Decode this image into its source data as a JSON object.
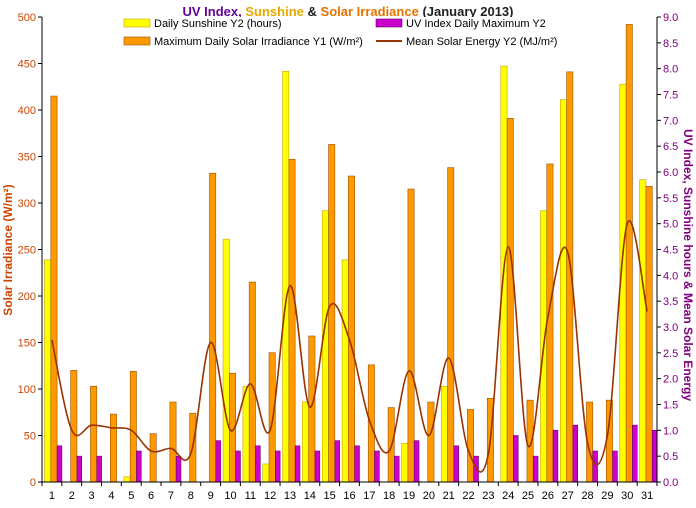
{
  "colors": {
    "sunshine": "#FFFF00",
    "sunshine_edge": "#C8A000",
    "irradiance": "#FF9900",
    "irradiance_edge": "#9C5200",
    "uv": "#CC00CC",
    "uv_edge": "#660066",
    "energy": "#993300",
    "left_axis": "#CC4400",
    "right_axis": "#800080",
    "title_uv": "#660099",
    "title_sun": "#E6A800",
    "title_solar": "#E67300",
    "title_dark": "#222222"
  },
  "chart_data": {
    "type": "bar",
    "title": {
      "part1": "UV Index,",
      "part2": "Sunshine",
      "part3": "&",
      "part4": "Solar Irradiance",
      "part5": "(January 2013)"
    },
    "xlabel": "",
    "ylabel_left": "Solar Irradiance (W/m²)",
    "ylabel_right": "UV Index, Sunshine hours & Mean Solar Energy",
    "ylim_left": [
      0,
      500
    ],
    "ylim_right": [
      0,
      9
    ],
    "yticks_left": [
      "0",
      "50",
      "100",
      "150",
      "200",
      "250",
      "300",
      "350",
      "400",
      "450",
      "500"
    ],
    "yticks_right": [
      "0.0",
      "0.5",
      "1.0",
      "1.5",
      "2.0",
      "2.5",
      "3.0",
      "3.5",
      "4.0",
      "4.5",
      "5.0",
      "5.5",
      "6.0",
      "6.5",
      "7.0",
      "7.5",
      "8.0",
      "8.5",
      "9.0"
    ],
    "categories": [
      "1",
      "2",
      "3",
      "4",
      "5",
      "6",
      "7",
      "8",
      "9",
      "10",
      "11",
      "12",
      "13",
      "14",
      "15",
      "16",
      "17",
      "18",
      "19",
      "20",
      "21",
      "22",
      "23",
      "24",
      "25",
      "26",
      "27",
      "28",
      "29",
      "30",
      "31"
    ],
    "legend": {
      "sunshine": "Daily Sunshine Y2 (hours)",
      "irradiance": "Maximum Daily Solar Irradiance Y1 (W/m²)",
      "uv": "UV Index Daily Maximum Y2",
      "energy": "Mean Solar Energy Y2 (MJ/m²)"
    },
    "series": [
      {
        "name": "Daily Sunshine Y2 (hours)",
        "axis": "right",
        "kind": "bar",
        "values": [
          4.3,
          0.0,
          0.0,
          0.0,
          0.1,
          0.0,
          0.0,
          0.0,
          0.0,
          4.7,
          1.85,
          0.35,
          7.95,
          1.55,
          5.25,
          4.3,
          0.0,
          0.0,
          0.75,
          0.0,
          1.85,
          0.0,
          0.0,
          8.05,
          0.0,
          5.25,
          7.4,
          0.0,
          0.0,
          7.7,
          5.85
        ]
      },
      {
        "name": "Maximum Daily Solar Irradiance Y1 (W/m²)",
        "axis": "left",
        "kind": "bar",
        "values": [
          415,
          120,
          103,
          73,
          119,
          52,
          86,
          74,
          332,
          117,
          215,
          139,
          347,
          157,
          363,
          329,
          126,
          80,
          315,
          86,
          338,
          78,
          90,
          391,
          88,
          342,
          441,
          86,
          88,
          492,
          318
        ]
      },
      {
        "name": "UV Index Daily Maximum Y2",
        "axis": "right",
        "kind": "bar",
        "values": [
          0.7,
          0.5,
          0.5,
          0.0,
          0.6,
          0.0,
          0.5,
          0.0,
          0.8,
          0.6,
          0.7,
          0.6,
          0.7,
          0.6,
          0.8,
          0.7,
          0.6,
          0.5,
          0.8,
          0.0,
          0.7,
          0.5,
          0.0,
          0.9,
          0.5,
          1.0,
          1.1,
          0.6,
          0.6,
          1.1,
          1.0
        ]
      },
      {
        "name": "Mean Solar Energy Y2 (MJ/m²)",
        "axis": "right",
        "kind": "line",
        "values": [
          2.75,
          1.0,
          1.1,
          1.05,
          1.0,
          0.6,
          0.65,
          0.55,
          2.7,
          1.0,
          1.9,
          1.0,
          3.8,
          1.45,
          3.4,
          2.75,
          1.2,
          0.6,
          2.15,
          0.9,
          2.4,
          0.6,
          0.55,
          4.55,
          0.7,
          3.2,
          4.45,
          0.75,
          0.9,
          5.0,
          3.3
        ]
      }
    ]
  }
}
